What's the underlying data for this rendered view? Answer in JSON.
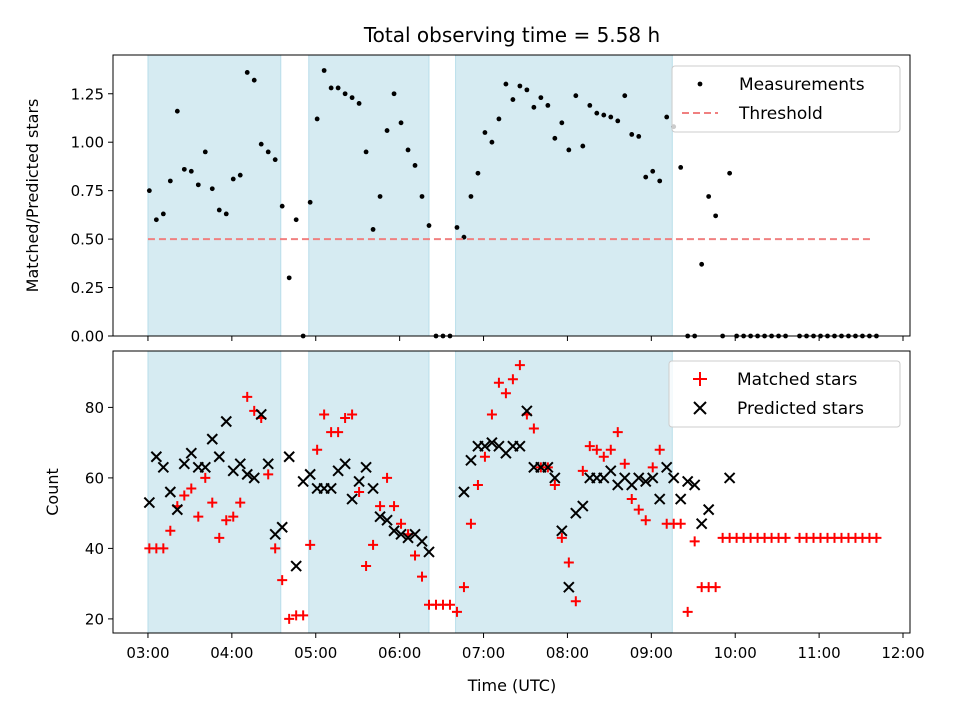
{
  "figure": {
    "title": "Total observing time = 5.58 h",
    "xlabel": "Time (UTC)"
  },
  "chart_data": [
    {
      "type": "scatter",
      "title": "Total observing time = 5.58 h",
      "xlabel": "",
      "ylabel": "Matched/Predicted stars",
      "xlim": [
        "02:35",
        "12:05"
      ],
      "ylim": [
        0,
        1.45
      ],
      "yticks": [
        0.0,
        0.25,
        0.5,
        0.75,
        1.0,
        1.25
      ],
      "ytick_labels": [
        "0.00",
        "0.25",
        "0.50",
        "0.75",
        "1.00",
        "1.25"
      ],
      "legend_position": "top-right",
      "shaded_intervals": [
        [
          "03:00",
          "04:35"
        ],
        [
          "04:55",
          "06:21"
        ],
        [
          "06:40",
          "09:15"
        ]
      ],
      "series": [
        {
          "name": "Measurements",
          "marker": "dot",
          "color": "#000000",
          "x": [
            "03:01",
            "03:06",
            "03:11",
            "03:16",
            "03:21",
            "03:26",
            "03:31",
            "03:36",
            "03:41",
            "03:46",
            "03:51",
            "03:56",
            "04:01",
            "04:06",
            "04:11",
            "04:16",
            "04:21",
            "04:26",
            "04:31",
            "04:36",
            "04:41",
            "04:46",
            "04:51",
            "04:56",
            "05:01",
            "05:06",
            "05:11",
            "05:16",
            "05:21",
            "05:26",
            "05:31",
            "05:36",
            "05:41",
            "05:46",
            "05:51",
            "05:56",
            "06:01",
            "06:06",
            "06:11",
            "06:16",
            "06:21",
            "06:26",
            "06:31",
            "06:36",
            "06:41",
            "06:46",
            "06:51",
            "06:56",
            "07:01",
            "07:06",
            "07:11",
            "07:16",
            "07:21",
            "07:26",
            "07:31",
            "07:36",
            "07:41",
            "07:46",
            "07:51",
            "07:56",
            "08:01",
            "08:06",
            "08:11",
            "08:16",
            "08:21",
            "08:26",
            "08:31",
            "08:36",
            "08:41",
            "08:46",
            "08:51",
            "08:56",
            "09:01",
            "09:06",
            "09:11",
            "09:16",
            "09:21",
            "09:26",
            "09:31",
            "09:36",
            "09:41",
            "09:46",
            "09:51",
            "09:56",
            "10:01",
            "10:06",
            "10:11",
            "10:16",
            "10:21",
            "10:26",
            "10:31",
            "10:36",
            "10:46",
            "10:51",
            "10:56",
            "11:01",
            "11:06",
            "11:11",
            "11:16",
            "11:21",
            "11:26",
            "11:31",
            "11:36",
            "11:41"
          ],
          "y": [
            0.75,
            0.6,
            0.63,
            0.8,
            1.16,
            0.86,
            0.85,
            0.78,
            0.95,
            0.76,
            0.65,
            0.63,
            0.81,
            0.83,
            1.36,
            1.32,
            0.99,
            0.95,
            0.91,
            0.67,
            0.3,
            0.6,
            0.0,
            0.69,
            1.12,
            1.37,
            1.28,
            1.28,
            1.25,
            1.23,
            1.2,
            0.95,
            0.55,
            0.72,
            1.06,
            1.25,
            1.1,
            0.96,
            0.88,
            0.72,
            0.57,
            0.0,
            0.0,
            0.0,
            0.56,
            0.51,
            0.72,
            0.84,
            1.05,
            1.0,
            1.12,
            1.3,
            1.22,
            1.29,
            1.27,
            1.18,
            1.23,
            1.19,
            1.02,
            1.1,
            0.96,
            1.24,
            0.98,
            1.19,
            1.15,
            1.14,
            1.13,
            1.11,
            1.24,
            1.04,
            1.03,
            0.82,
            0.85,
            0.8,
            1.13,
            1.08,
            0.87,
            0.0,
            0.0,
            0.37,
            0.72,
            0.62,
            0.0,
            0.84,
            0.0,
            0.0,
            0.0,
            0.0,
            0.0,
            0.0,
            0.0,
            0.0,
            0.0,
            0.0,
            0.0,
            0.0,
            0.0,
            0.0,
            0.0,
            0.0,
            0.0,
            0.0,
            0.0,
            0.0
          ]
        },
        {
          "name": "Threshold",
          "style": "dashed-line",
          "color": "#f08080",
          "x": [
            "03:00",
            "11:37"
          ],
          "y": [
            0.5,
            0.5
          ]
        }
      ]
    },
    {
      "type": "scatter",
      "xlabel": "Time (UTC)",
      "ylabel": "Count",
      "xlim": [
        "02:35",
        "12:05"
      ],
      "ylim": [
        16,
        96
      ],
      "yticks": [
        20,
        40,
        60,
        80
      ],
      "xtick_labels": [
        "03:00",
        "04:00",
        "05:00",
        "06:00",
        "07:00",
        "08:00",
        "09:00",
        "10:00",
        "11:00",
        "12:00"
      ],
      "legend_position": "top-right",
      "shaded_intervals": [
        [
          "03:00",
          "04:35"
        ],
        [
          "04:55",
          "06:21"
        ],
        [
          "06:40",
          "09:15"
        ]
      ],
      "series": [
        {
          "name": "Matched stars",
          "marker": "plus",
          "color": "#ff0000",
          "x": [
            "03:01",
            "03:06",
            "03:11",
            "03:16",
            "03:21",
            "03:26",
            "03:31",
            "03:36",
            "03:41",
            "03:46",
            "03:51",
            "03:56",
            "04:01",
            "04:06",
            "04:11",
            "04:16",
            "04:21",
            "04:26",
            "04:31",
            "04:36",
            "04:41",
            "04:46",
            "04:51",
            "04:56",
            "05:01",
            "05:06",
            "05:11",
            "05:16",
            "05:21",
            "05:26",
            "05:31",
            "05:36",
            "05:41",
            "05:46",
            "05:51",
            "05:56",
            "06:01",
            "06:06",
            "06:11",
            "06:16",
            "06:21",
            "06:26",
            "06:31",
            "06:36",
            "06:41",
            "06:46",
            "06:51",
            "06:56",
            "07:01",
            "07:06",
            "07:11",
            "07:16",
            "07:21",
            "07:26",
            "07:31",
            "07:36",
            "07:41",
            "07:46",
            "07:51",
            "07:56",
            "08:01",
            "08:06",
            "08:11",
            "08:16",
            "08:21",
            "08:26",
            "08:31",
            "08:36",
            "08:41",
            "08:46",
            "08:51",
            "08:56",
            "09:01",
            "09:06",
            "09:11",
            "09:16",
            "09:21",
            "09:26",
            "09:31",
            "09:36",
            "09:41",
            "09:46",
            "09:51",
            "09:56",
            "10:01",
            "10:06",
            "10:11",
            "10:16",
            "10:21",
            "10:26",
            "10:31",
            "10:36",
            "10:46",
            "10:51",
            "10:56",
            "11:01",
            "11:06",
            "11:11",
            "11:16",
            "11:21",
            "11:26",
            "11:31",
            "11:36",
            "11:41"
          ],
          "y": [
            40,
            40,
            40,
            45,
            52,
            55,
            57,
            49,
            60,
            53,
            43,
            48,
            49,
            53,
            83,
            79,
            77,
            61,
            40,
            31,
            20,
            21,
            21,
            41,
            68,
            78,
            73,
            73,
            77,
            78,
            56,
            35,
            41,
            52,
            60,
            52,
            47,
            44,
            38,
            32,
            24,
            24,
            24,
            24,
            22,
            29,
            47,
            58,
            66,
            78,
            87,
            84,
            88,
            92,
            78,
            74,
            63,
            63,
            58,
            43,
            36,
            25,
            62,
            69,
            68,
            66,
            68,
            73,
            64,
            54,
            51,
            48,
            63,
            68,
            47,
            47,
            47,
            22,
            42,
            29,
            29,
            29,
            43,
            43,
            43,
            43,
            43,
            43,
            43,
            43,
            43,
            43,
            43,
            43,
            43,
            43,
            43,
            43,
            43,
            43,
            43,
            43,
            43,
            43
          ]
        },
        {
          "name": "Predicted stars",
          "marker": "x",
          "color": "#000000",
          "x": [
            "03:01",
            "03:06",
            "03:11",
            "03:16",
            "03:21",
            "03:26",
            "03:31",
            "03:36",
            "03:41",
            "03:46",
            "03:51",
            "03:56",
            "04:01",
            "04:06",
            "04:11",
            "04:16",
            "04:21",
            "04:26",
            "04:31",
            "04:36",
            "04:41",
            "04:46",
            "04:51",
            "04:56",
            "05:01",
            "05:06",
            "05:11",
            "05:16",
            "05:21",
            "05:26",
            "05:31",
            "05:36",
            "05:41",
            "05:46",
            "05:51",
            "05:56",
            "06:01",
            "06:06",
            "06:11",
            "06:16",
            "06:21",
            "06:46",
            "06:51",
            "06:56",
            "07:01",
            "07:06",
            "07:11",
            "07:16",
            "07:21",
            "07:26",
            "07:31",
            "07:36",
            "07:41",
            "07:46",
            "07:51",
            "07:56",
            "08:01",
            "08:06",
            "08:11",
            "08:16",
            "08:21",
            "08:26",
            "08:31",
            "08:36",
            "08:41",
            "08:46",
            "08:51",
            "08:56",
            "09:01",
            "09:06",
            "09:11",
            "09:16",
            "09:21",
            "09:26",
            "09:31",
            "09:36",
            "09:41",
            "09:56"
          ],
          "y": [
            53,
            66,
            63,
            56,
            51,
            64,
            67,
            63,
            63,
            71,
            66,
            76,
            62,
            64,
            61,
            60,
            78,
            64,
            44,
            46,
            66,
            35,
            59,
            61,
            57,
            57,
            57,
            62,
            64,
            54,
            59,
            63,
            57,
            49,
            48,
            45,
            44,
            43,
            44,
            42,
            39,
            56,
            65,
            69,
            69,
            70,
            69,
            67,
            69,
            69,
            79,
            63,
            63,
            63,
            60,
            45,
            29,
            50,
            52,
            60,
            60,
            60,
            62,
            58,
            60,
            58,
            60,
            59,
            60,
            54,
            63,
            60,
            54,
            59,
            58,
            47,
            51,
            60
          ]
        }
      ]
    }
  ]
}
